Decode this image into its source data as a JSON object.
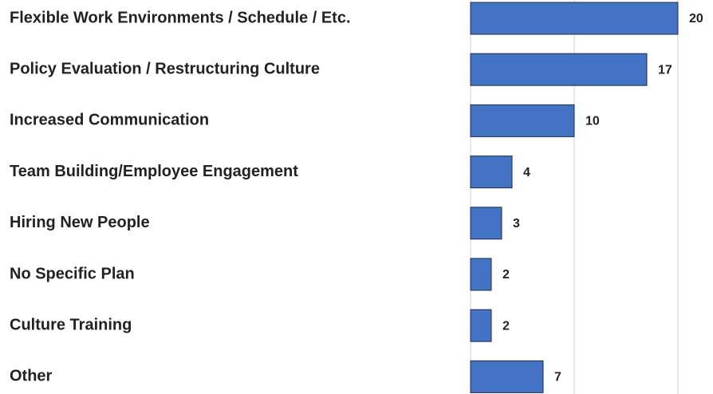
{
  "chart_data": {
    "type": "barh",
    "categories": [
      "Flexible Work Environments / Schedule / Etc.",
      "Policy Evaluation / Restructuring Culture",
      "Increased Communication",
      "Team Building/Employee Engagement",
      "Hiring New People",
      "No Specific Plan",
      "Culture Training",
      "Other"
    ],
    "values": [
      20,
      17,
      10,
      4,
      3,
      2,
      2,
      7
    ],
    "color": "#4472c4",
    "xlim": [
      0,
      20
    ],
    "xticks": [
      0,
      10,
      20
    ],
    "grid": true
  }
}
